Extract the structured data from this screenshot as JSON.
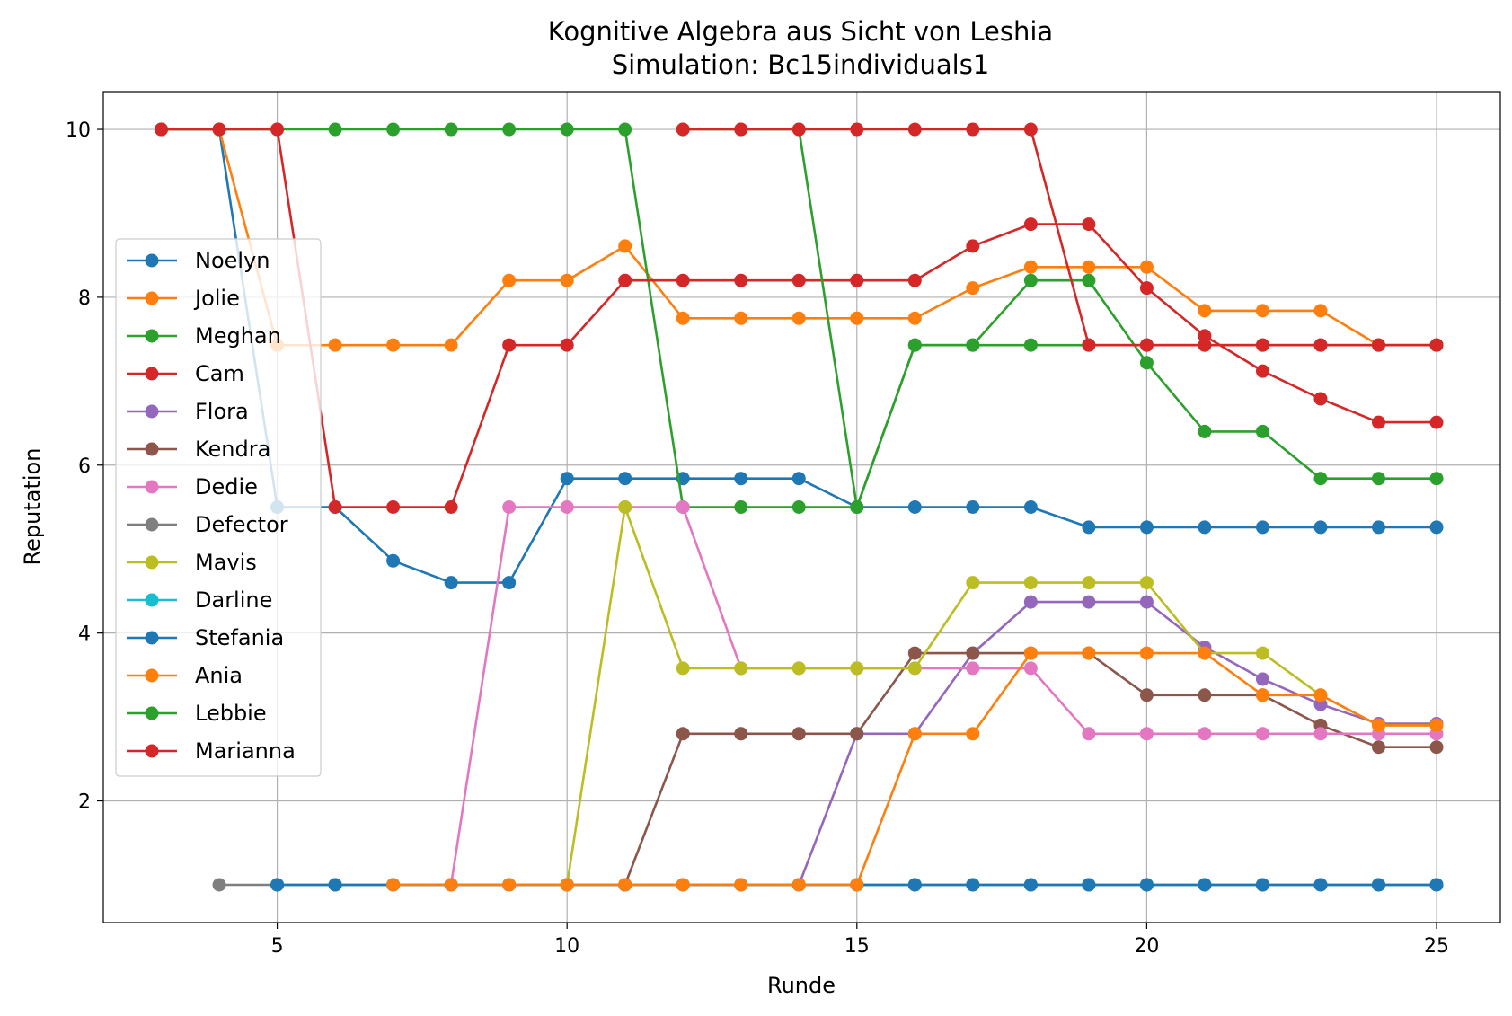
{
  "chart_data": {
    "type": "line",
    "title": "Kognitive Algebra aus Sicht von Leshia",
    "subtitle": "Simulation: Bc15individuals1",
    "xlabel": "Runde",
    "ylabel": "Reputation",
    "xlim": [
      2,
      26.1
    ],
    "ylim": [
      0.55,
      10.45
    ],
    "xticks": [
      5,
      10,
      15,
      20,
      25
    ],
    "yticks": [
      2,
      4,
      6,
      8,
      10
    ],
    "grid": true,
    "legend_position": "center-left",
    "series": [
      {
        "name": "Noelyn",
        "color": "#1f77b4",
        "x": [
          3,
          4,
          5,
          6,
          7,
          8,
          9,
          10,
          11,
          12,
          13,
          14,
          15,
          16,
          17,
          18,
          19,
          20,
          21,
          22,
          23,
          24,
          25
        ],
        "y": [
          10,
          10,
          5.5,
          5.5,
          4.86,
          4.6,
          4.6,
          5.84,
          5.84,
          5.84,
          5.84,
          5.84,
          5.5,
          5.5,
          5.5,
          5.5,
          5.26,
          5.26,
          5.26,
          5.26,
          5.26,
          5.26,
          5.26
        ]
      },
      {
        "name": "Jolie",
        "color": "#ff7f0e",
        "x": [
          3,
          4,
          5,
          6,
          7,
          8,
          9,
          10,
          11,
          12,
          13,
          14,
          15,
          16,
          17,
          18,
          19,
          20,
          21,
          22,
          23,
          24,
          25
        ],
        "y": [
          10,
          10,
          7.43,
          7.43,
          7.43,
          7.43,
          8.2,
          8.2,
          8.61,
          7.75,
          7.75,
          7.75,
          7.75,
          7.75,
          8.11,
          8.36,
          8.36,
          8.36,
          7.84,
          7.84,
          7.84,
          7.43,
          7.43
        ]
      },
      {
        "name": "Meghan",
        "color": "#2ca02c",
        "x": [
          3,
          4,
          5,
          6,
          7,
          8,
          9,
          10,
          11,
          12,
          13,
          14,
          15,
          16,
          17,
          18,
          19,
          20,
          21,
          22,
          23,
          24,
          25
        ],
        "y": [
          10,
          10,
          10,
          10,
          10,
          10,
          10,
          10,
          10,
          5.5,
          5.5,
          5.5,
          5.5,
          7.43,
          7.43,
          7.43,
          7.43,
          7.43,
          7.43,
          7.43,
          7.43,
          7.43,
          7.43
        ]
      },
      {
        "name": "Cam",
        "color": "#d62728",
        "x": [
          3,
          4,
          5,
          6,
          7,
          8,
          9,
          10,
          11,
          12,
          13,
          14,
          15,
          16,
          17,
          18,
          19,
          20,
          21,
          22,
          23,
          24,
          25
        ],
        "y": [
          10,
          10,
          10,
          5.5,
          5.5,
          5.5,
          7.43,
          7.43,
          8.2,
          8.2,
          8.2,
          8.2,
          8.2,
          8.2,
          8.61,
          8.87,
          8.87,
          8.11,
          7.54,
          7.12,
          6.79,
          6.51,
          6.51
        ]
      },
      {
        "name": "Flora",
        "color": "#9467bd",
        "x": [
          14,
          15,
          16,
          17,
          18,
          19,
          20,
          21,
          22,
          23,
          24,
          25
        ],
        "y": [
          1,
          2.8,
          2.8,
          3.76,
          4.37,
          4.37,
          4.37,
          3.83,
          3.45,
          3.15,
          2.92,
          2.92
        ]
      },
      {
        "name": "Kendra",
        "color": "#8c564b",
        "x": [
          11,
          12,
          13,
          14,
          15,
          16,
          17,
          18,
          19,
          20,
          21,
          22,
          23,
          24,
          25
        ],
        "y": [
          1,
          2.8,
          2.8,
          2.8,
          2.8,
          3.76,
          3.76,
          3.76,
          3.76,
          3.26,
          3.26,
          3.26,
          2.9,
          2.64,
          2.64
        ]
      },
      {
        "name": "Dedie",
        "color": "#e377c2",
        "x": [
          8,
          9,
          10,
          11,
          12,
          13,
          14,
          15,
          16,
          17,
          18,
          19,
          20,
          21,
          22,
          23,
          24,
          25
        ],
        "y": [
          1,
          5.5,
          5.5,
          5.5,
          5.5,
          3.58,
          3.58,
          3.58,
          3.58,
          3.58,
          3.58,
          2.8,
          2.8,
          2.8,
          2.8,
          2.8,
          2.8,
          2.8
        ]
      },
      {
        "name": "Defector",
        "color": "#7f7f7f",
        "x": [
          4,
          5,
          6,
          7,
          8,
          9,
          10,
          11,
          12,
          13,
          14,
          15,
          16,
          17,
          18,
          19,
          20,
          21,
          22,
          23,
          24,
          25
        ],
        "y": [
          1,
          1,
          1,
          1,
          1,
          1,
          1,
          1,
          1,
          1,
          1,
          1,
          1,
          1,
          1,
          1,
          1,
          1,
          1,
          1,
          1,
          1
        ]
      },
      {
        "name": "Mavis",
        "color": "#bcbd22",
        "x": [
          10,
          11,
          12,
          13,
          14,
          15,
          16,
          17,
          18,
          19,
          20,
          21,
          22,
          23,
          24,
          25
        ],
        "y": [
          1,
          5.5,
          3.58,
          3.58,
          3.58,
          3.58,
          3.58,
          4.6,
          4.6,
          4.6,
          4.6,
          3.76,
          3.76,
          3.26,
          2.9,
          2.9
        ]
      },
      {
        "name": "Darline",
        "color": "#17becf",
        "x": [
          5,
          6,
          7,
          8,
          9,
          10,
          11,
          12,
          13,
          14,
          15,
          16,
          17,
          18,
          19,
          20,
          21,
          22,
          23,
          24,
          25
        ],
        "y": [
          1,
          1,
          1,
          1,
          1,
          1,
          1,
          1,
          1,
          1,
          1,
          1,
          1,
          1,
          1,
          1,
          1,
          1,
          1,
          1,
          1
        ]
      },
      {
        "name": "Stefania",
        "color": "#1f77b4",
        "x": [
          5,
          6,
          7,
          8,
          9,
          10,
          11,
          12,
          13,
          14,
          15,
          16,
          17,
          18,
          19,
          20,
          21,
          22,
          23,
          24,
          25
        ],
        "y": [
          1,
          1,
          1,
          1,
          1,
          1,
          1,
          1,
          1,
          1,
          1,
          1,
          1,
          1,
          1,
          1,
          1,
          1,
          1,
          1,
          1
        ]
      },
      {
        "name": "Ania",
        "color": "#ff7f0e",
        "x": [
          7,
          8,
          9,
          10,
          11,
          12,
          13,
          14,
          15,
          16,
          17,
          18,
          19,
          20,
          21,
          22,
          23,
          24,
          25
        ],
        "y": [
          1,
          1,
          1,
          1,
          1,
          1,
          1,
          1,
          1,
          2.8,
          2.8,
          3.76,
          3.76,
          3.76,
          3.76,
          3.26,
          3.26,
          2.9,
          2.9
        ]
      },
      {
        "name": "Lebbie",
        "color": "#2ca02c",
        "x": [
          12,
          13,
          14,
          15,
          16,
          17,
          18,
          19,
          20,
          21,
          22,
          23,
          24,
          25
        ],
        "y": [
          10,
          10,
          10,
          5.5,
          7.43,
          7.43,
          8.2,
          8.2,
          7.22,
          6.4,
          6.4,
          5.84,
          5.84,
          5.84
        ]
      },
      {
        "name": "Marianna",
        "color": "#d62728",
        "x": [
          12,
          13,
          14,
          15,
          16,
          17,
          18,
          19,
          20,
          21,
          22,
          23,
          24,
          25
        ],
        "y": [
          10,
          10,
          10,
          10,
          10,
          10,
          10,
          7.43,
          7.43,
          7.43,
          7.43,
          7.43,
          7.43,
          7.43
        ]
      }
    ]
  }
}
